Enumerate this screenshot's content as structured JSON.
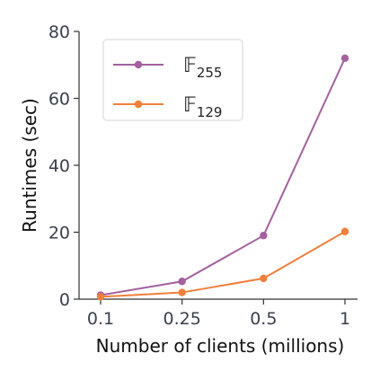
{
  "chart_data": {
    "type": "line",
    "categories": [
      "0.1",
      "0.25",
      "0.5",
      "1"
    ],
    "xlabel": "Number of clients (millions)",
    "ylabel": "Runtimes (sec)",
    "ylim": [
      0,
      80
    ],
    "yticks": [
      0,
      20,
      40,
      60,
      80
    ],
    "grid": false,
    "legend_position": "top-left",
    "series": [
      {
        "name": "F255",
        "label_main": "𝔽",
        "label_sub": "255",
        "color": "#a4619e",
        "values": [
          1.2,
          5.3,
          19.0,
          72.0
        ]
      },
      {
        "name": "F129",
        "label_main": "𝔽",
        "label_sub": "129",
        "color": "#f07f3c",
        "values": [
          0.7,
          2.0,
          6.2,
          20.2
        ]
      }
    ]
  }
}
